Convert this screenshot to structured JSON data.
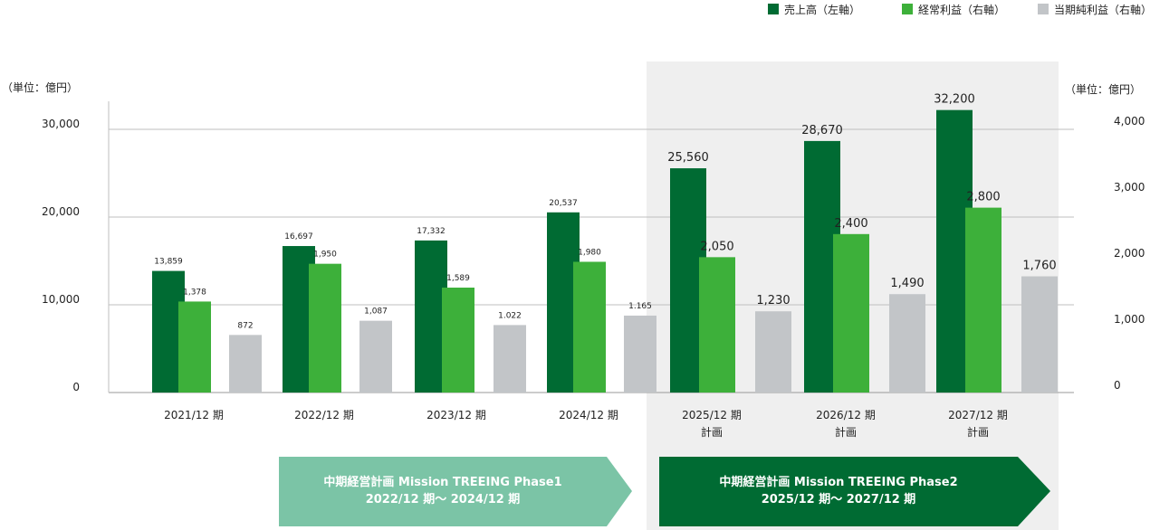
{
  "legend": {
    "sales": "売上高（左軸）",
    "ordinary_profit": "経常利益（右軸）",
    "net_profit": "当期純利益（右軸）"
  },
  "unit_left": "（単位：億円）",
  "unit_right": "（単位：億円）",
  "colors": {
    "sales": "#006b33",
    "ordinary_profit": "#3db03a",
    "net_profit": "#c2c5c8",
    "plan_bg": "#efefef",
    "phase1": "#7bc4a6",
    "phase2": "#006b33"
  },
  "chart_data": {
    "type": "bar",
    "categories": [
      {
        "line1": "2021/12 期",
        "line2": ""
      },
      {
        "line1": "2022/12 期",
        "line2": ""
      },
      {
        "line1": "2023/12 期",
        "line2": ""
      },
      {
        "line1": "2024/12 期",
        "line2": ""
      },
      {
        "line1": "2025/12 期",
        "line2": "計画"
      },
      {
        "line1": "2026/12 期",
        "line2": "計画"
      },
      {
        "line1": "2027/12 期",
        "line2": "計画"
      }
    ],
    "series": [
      {
        "name": "売上高（左軸）",
        "axis": "left",
        "values": [
          13859,
          16697,
          17332,
          20537,
          25560,
          28670,
          32200
        ],
        "labels": [
          "13,859",
          "16,697",
          "17,332",
          "20,537",
          "25,560",
          "28,670",
          "32,200"
        ]
      },
      {
        "name": "経常利益（右軸）",
        "axis": "right",
        "values": [
          1378,
          1950,
          1589,
          1980,
          2050,
          2400,
          2800
        ],
        "labels": [
          "1,378",
          "1,950",
          "1,589",
          "1,980",
          "2,050",
          "2,400",
          "2,800"
        ]
      },
      {
        "name": "当期純利益（右軸）",
        "axis": "right",
        "values": [
          872,
          1087,
          1022,
          1165,
          1230,
          1490,
          1760
        ],
        "labels": [
          "872",
          "1,087",
          "1.022",
          "1.165",
          "1,230",
          "1,490",
          "1,760"
        ]
      }
    ],
    "left_ticks": [
      "0",
      "10,000",
      "20,000",
      "30,000"
    ],
    "right_ticks": [
      "0",
      "1,000",
      "2,000",
      "3,000",
      "4,000"
    ],
    "ylim_left": [
      0,
      33000
    ],
    "ylim_right": [
      0,
      4400
    ],
    "grid": true,
    "legend_position": "top-right"
  },
  "phases": [
    {
      "line1": "中期経営計画 Mission TREEING Phase1",
      "line2": "2022/12 期〜 2024/12 期"
    },
    {
      "line1": "中期経営計画 Mission TREEING Phase2",
      "line2": "2025/12 期〜 2027/12 期"
    }
  ]
}
